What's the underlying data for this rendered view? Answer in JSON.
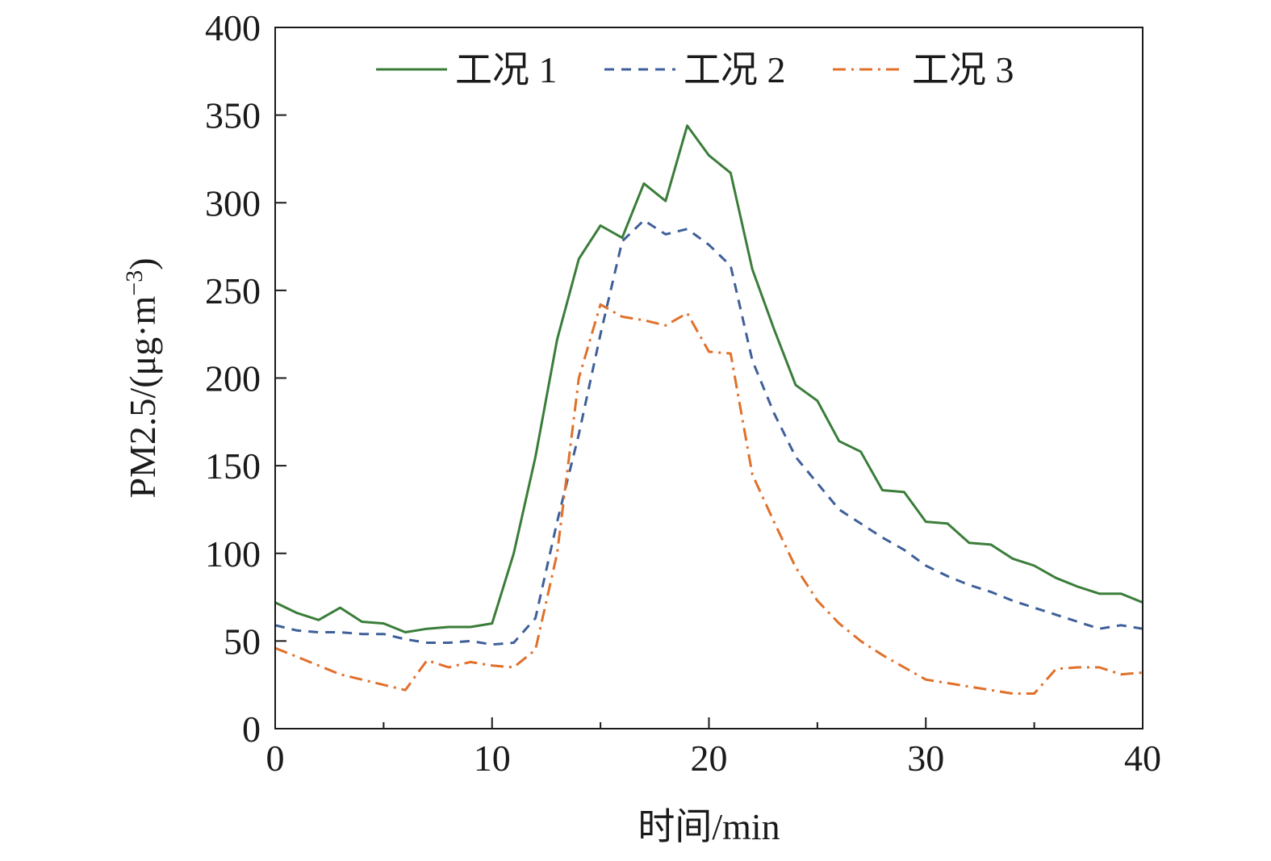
{
  "chart_data": {
    "type": "line",
    "xlabel": "时间/min",
    "ylabel_main": "PM2.5/(μg·m",
    "ylabel_sup": "−3",
    "ylabel_close": ")",
    "xlim": [
      0,
      40
    ],
    "ylim": [
      0,
      400
    ],
    "xticks": [
      0,
      10,
      20,
      30,
      40
    ],
    "yticks": [
      0,
      50,
      100,
      150,
      200,
      250,
      300,
      350,
      400
    ],
    "grid": false,
    "legend_position": "top",
    "x": [
      0,
      1,
      2,
      3,
      4,
      5,
      6,
      7,
      8,
      9,
      10,
      11,
      12,
      13,
      14,
      15,
      16,
      17,
      18,
      19,
      20,
      21,
      22,
      23,
      24,
      25,
      26,
      27,
      28,
      29,
      30,
      31,
      32,
      33,
      34,
      35,
      36,
      37,
      38,
      39,
      40
    ],
    "series": [
      {
        "name": "工况 1",
        "color": "#3a7d3a",
        "dash": "solid",
        "values": [
          72,
          66,
          62,
          69,
          61,
          60,
          55,
          57,
          58,
          58,
          60,
          100,
          155,
          222,
          268,
          287,
          280,
          311,
          301,
          344,
          327,
          317,
          262,
          228,
          196,
          187,
          164,
          158,
          136,
          135,
          118,
          117,
          106,
          105,
          97,
          93,
          86,
          81,
          77,
          77,
          72
        ]
      },
      {
        "name": "工况 2",
        "color": "#3e5f99",
        "dash": "dashed",
        "values": [
          59,
          56,
          55,
          55,
          54,
          54,
          51,
          49,
          49,
          50,
          48,
          49,
          63,
          118,
          168,
          225,
          278,
          290,
          282,
          285,
          276,
          264,
          210,
          180,
          155,
          140,
          125,
          117,
          109,
          102,
          93,
          87,
          82,
          78,
          73,
          69,
          65,
          61,
          57,
          59,
          57
        ]
      },
      {
        "name": "工况 3",
        "color": "#e0702a",
        "dash": "dashdot",
        "values": [
          46,
          41,
          36,
          31,
          28,
          25,
          22,
          39,
          35,
          38,
          36,
          35,
          45,
          100,
          200,
          242,
          235,
          233,
          230,
          237,
          215,
          214,
          145,
          118,
          92,
          73,
          60,
          50,
          42,
          35,
          28,
          26,
          24,
          22,
          20,
          20,
          34,
          35,
          35,
          31,
          32
        ]
      }
    ]
  }
}
